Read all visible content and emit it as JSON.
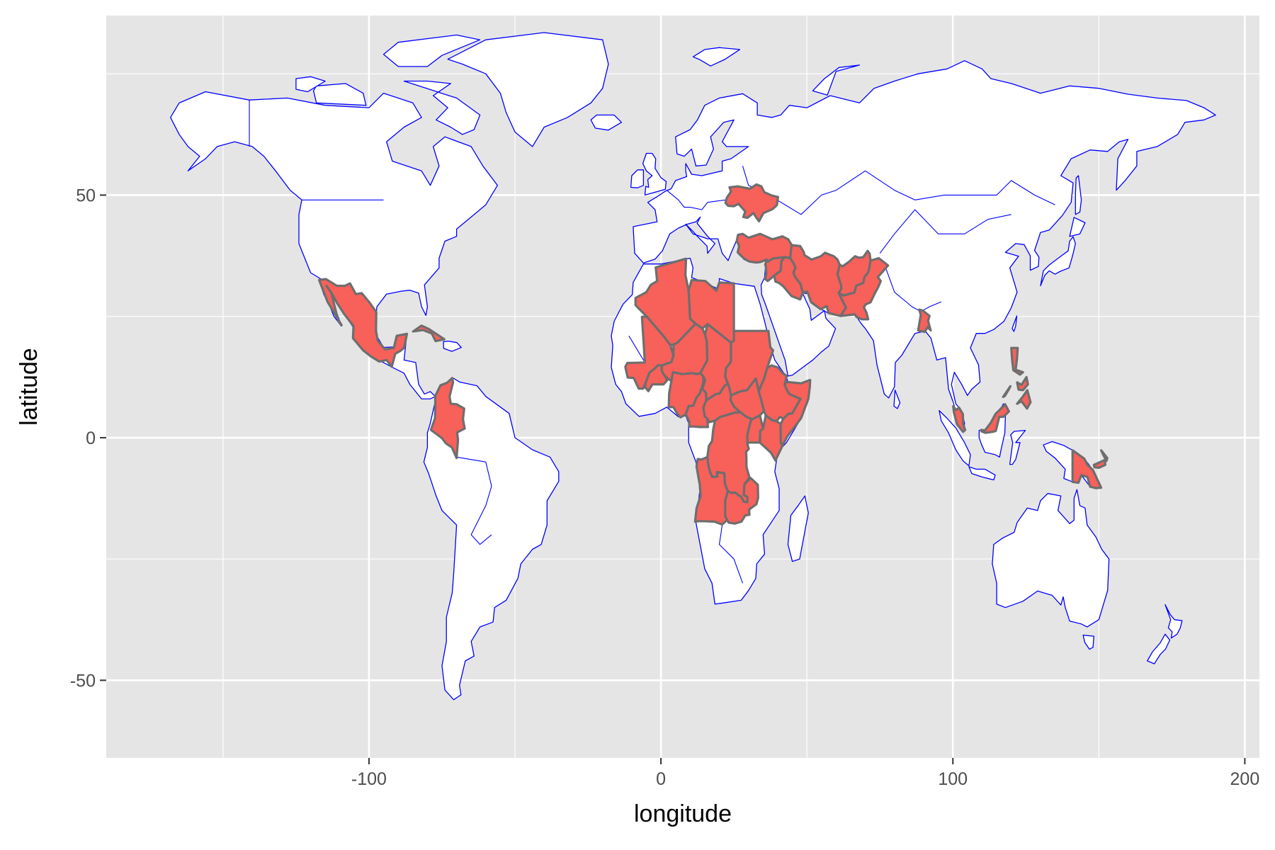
{
  "map": {
    "x_axis": {
      "title": "longitude",
      "range": [
        -190,
        205
      ],
      "ticks": [
        -100,
        0,
        100,
        200
      ],
      "tick_labels": [
        "-100",
        "0",
        "100",
        "200"
      ],
      "minor_gridlines": [
        -150,
        -50,
        50,
        150
      ]
    },
    "y_axis": {
      "title": "latitude",
      "range": [
        -66,
        87
      ],
      "ticks": [
        -50,
        0,
        50
      ],
      "tick_labels": [
        "-50",
        "0",
        "50"
      ],
      "minor_gridlines": [
        -25,
        25,
        75
      ]
    },
    "colors": {
      "panel_background": "#e5e5e5",
      "gridline": "#ffffff",
      "country_fill": "#ffffff",
      "country_border": "#0000ff",
      "highlight_fill": "#f8605a",
      "highlight_border": "#6e6e6e"
    },
    "highlighted_regions": [
      "Mexico",
      "Colombia",
      "Cuba",
      "Algeria",
      "Libya",
      "Mali",
      "Niger",
      "Nigeria",
      "Chad",
      "Sudan",
      "South Sudan",
      "Ethiopia",
      "Somalia",
      "Central African Republic",
      "Cameroon",
      "Democratic Republic of the Congo",
      "Uganda",
      "Kenya",
      "Angola",
      "Zambia",
      "Burkina Faso",
      "Ukraine",
      "Turkey",
      "Syria",
      "Iraq",
      "Iran",
      "Afghanistan",
      "Pakistan",
      "Bangladesh",
      "Malaysia",
      "Philippines",
      "Papua New Guinea"
    ]
  }
}
